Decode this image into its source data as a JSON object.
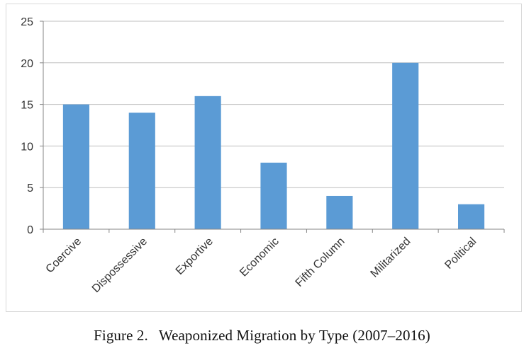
{
  "chart_data": {
    "type": "bar",
    "categories": [
      "Coercive",
      "Dispossessive",
      "Exportive",
      "Economic",
      "Fifth Column",
      "Militarized",
      "Political"
    ],
    "values": [
      15,
      14,
      16,
      8,
      4,
      20,
      3
    ],
    "ylim": [
      0,
      25
    ],
    "yticks": [
      "0",
      "5",
      "10",
      "15",
      "20",
      "25"
    ],
    "grid": "horizontal",
    "legend": "none",
    "bar_color": "#5b9bd5",
    "title": "",
    "xlabel": "",
    "ylabel": ""
  },
  "caption": {
    "label": "Figure 2.",
    "text": "Weaponized Migration by Type (2007–2016)"
  },
  "colors": {
    "gridline": "#bfbfbf",
    "axis": "#868686",
    "bar": "#5b9bd5"
  }
}
